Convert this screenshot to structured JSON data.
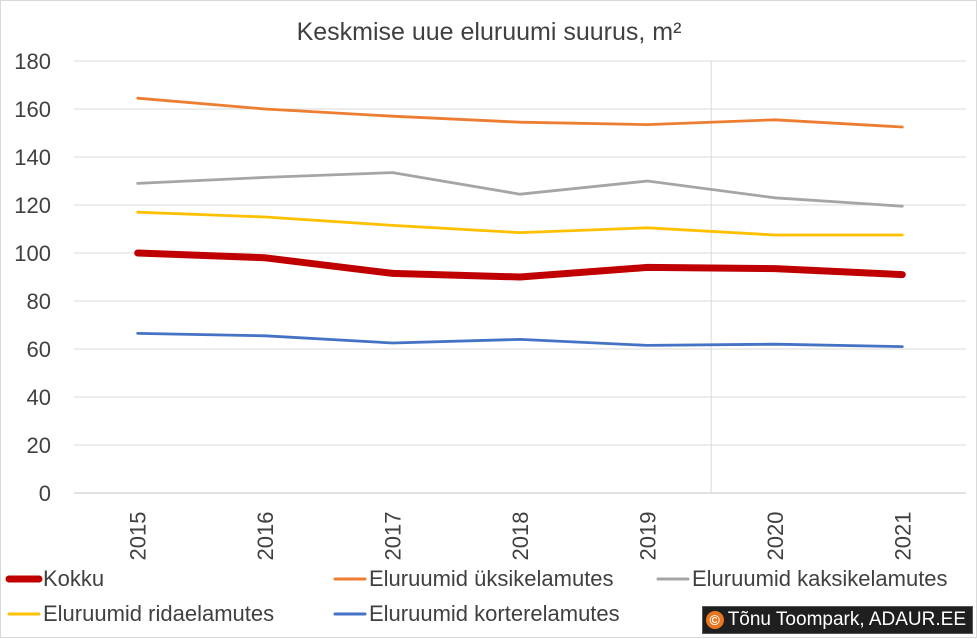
{
  "chart_data": {
    "type": "line",
    "title": "Keskmise uue eluruumi suurus, m²",
    "xlabel": "",
    "ylabel": "",
    "categories": [
      "2015",
      "2016",
      "2017",
      "2018",
      "2019",
      "2020",
      "2021"
    ],
    "ylim": [
      0,
      180
    ],
    "yticks": [
      0,
      20,
      40,
      60,
      80,
      100,
      120,
      140,
      160,
      180
    ],
    "grid": true,
    "legend_position": "bottom",
    "series": [
      {
        "name": "Kokku",
        "color": "#c00000",
        "emphasis": "thick",
        "values": [
          100,
          98,
          91.5,
          90,
          94,
          93.5,
          91
        ]
      },
      {
        "name": "Eluruumid üksikelamutes",
        "color": "#ed7d31",
        "emphasis": "normal",
        "values": [
          164.5,
          160,
          157,
          154.5,
          153.5,
          155.5,
          152.5
        ]
      },
      {
        "name": "Eluruumid kaksikelamutes",
        "color": "#a5a5a5",
        "emphasis": "normal",
        "values": [
          129,
          131.5,
          133.5,
          124.5,
          130,
          123,
          119.5
        ]
      },
      {
        "name": "Eluruumid ridaelamutes",
        "color": "#ffc000",
        "emphasis": "normal",
        "values": [
          117,
          115,
          111.5,
          108.5,
          110.5,
          107.5,
          107.5
        ]
      },
      {
        "name": "Eluruumid korterelamutes",
        "color": "#4472c4",
        "emphasis": "normal",
        "values": [
          66.5,
          65.5,
          62.5,
          64,
          61.5,
          62,
          61
        ]
      }
    ]
  },
  "credit": {
    "icon": "copyright-icon",
    "symbol": "©",
    "text": "Tõnu Toompark, ADAUR.EE"
  }
}
